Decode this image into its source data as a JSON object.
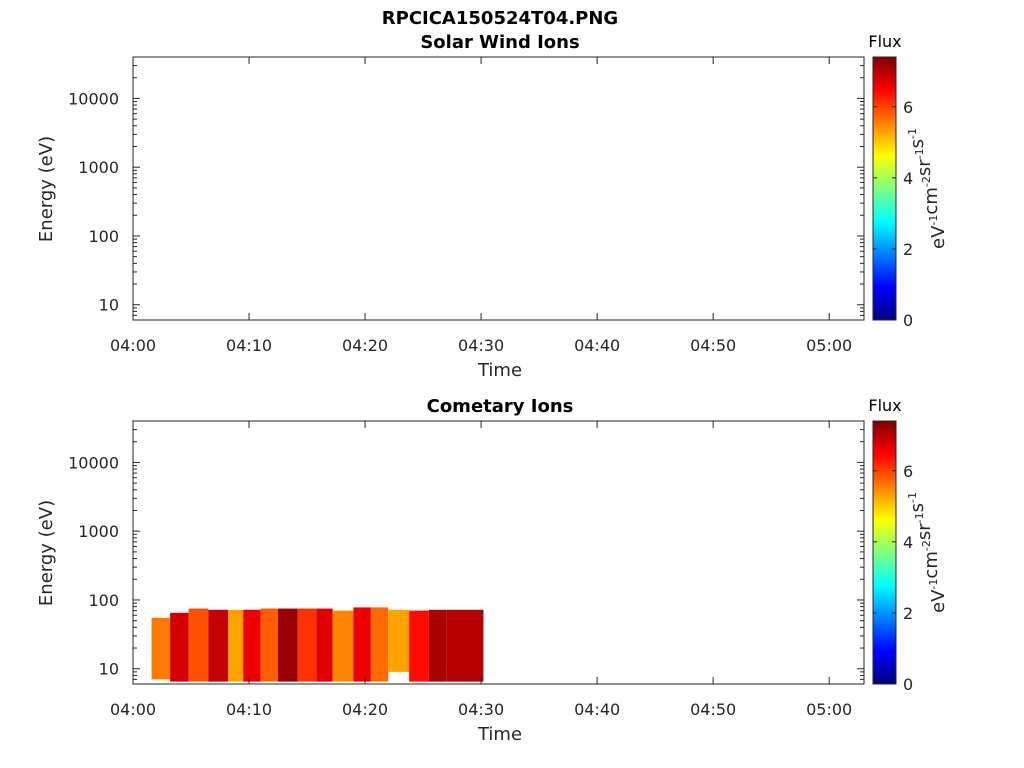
{
  "page_title": "RPCICA150524T04.PNG",
  "colormap": [
    "#00007f",
    "#0000ff",
    "#007fff",
    "#00ffff",
    "#7fff7f",
    "#ffff00",
    "#ff7f00",
    "#ff0000",
    "#7f0000"
  ],
  "chart_data": [
    {
      "type": "heatmap",
      "title": "Solar Wind Ions",
      "xlabel": "Time",
      "ylabel": "Energy (eV)",
      "x_ticks": [
        "04:00",
        "04:10",
        "04:20",
        "04:30",
        "04:40",
        "04:50",
        "05:00"
      ],
      "x_tick_minutes": [
        0,
        10,
        20,
        30,
        40,
        50,
        60
      ],
      "xlim_minutes": [
        0,
        63
      ],
      "y_scale": "log",
      "ylim": [
        6,
        40000
      ],
      "y_ticks": [
        "10",
        "100",
        "1000",
        "10000"
      ],
      "y_tick_values": [
        10,
        100,
        1000,
        10000
      ],
      "colorbar": {
        "title": "Flux",
        "label": "eV-1cm-2sr-1s-1",
        "range": [
          0,
          7.4
        ],
        "ticks": [
          "0",
          "2",
          "4",
          "6"
        ],
        "tick_values": [
          0,
          2,
          4,
          6
        ]
      },
      "cells": []
    },
    {
      "type": "heatmap",
      "title": "Cometary Ions",
      "xlabel": "Time",
      "ylabel": "Energy (eV)",
      "x_ticks": [
        "04:00",
        "04:10",
        "04:20",
        "04:30",
        "04:40",
        "04:50",
        "05:00"
      ],
      "x_tick_minutes": [
        0,
        10,
        20,
        30,
        40,
        50,
        60
      ],
      "xlim_minutes": [
        0,
        63
      ],
      "y_scale": "log",
      "ylim": [
        6,
        40000
      ],
      "y_ticks": [
        "10",
        "100",
        "1000",
        "10000"
      ],
      "y_tick_values": [
        10,
        100,
        1000,
        10000
      ],
      "colorbar": {
        "title": "Flux",
        "label": "eV-1cm-2sr-1s-1",
        "range": [
          0,
          7.4
        ],
        "ticks": [
          "0",
          "2",
          "4",
          "6"
        ],
        "tick_values": [
          0,
          2,
          4,
          6
        ]
      },
      "cells": [
        {
          "t0": 1.6,
          "t1": 3.2,
          "e0": 7.0,
          "e1": 55,
          "v": 5.6
        },
        {
          "t0": 3.2,
          "t1": 4.8,
          "e0": 6.5,
          "e1": 65,
          "v": 6.8
        },
        {
          "t0": 4.8,
          "t1": 6.5,
          "e0": 6.5,
          "e1": 75,
          "v": 5.9
        },
        {
          "t0": 6.5,
          "t1": 8.2,
          "e0": 6.5,
          "e1": 72,
          "v": 6.9
        },
        {
          "t0": 8.2,
          "t1": 9.5,
          "e0": 6.5,
          "e1": 72,
          "v": 5.3
        },
        {
          "t0": 9.5,
          "t1": 11.0,
          "e0": 6.5,
          "e1": 72,
          "v": 6.6
        },
        {
          "t0": 11.0,
          "t1": 12.5,
          "e0": 6.5,
          "e1": 75,
          "v": 5.8
        },
        {
          "t0": 12.5,
          "t1": 14.2,
          "e0": 6.5,
          "e1": 75,
          "v": 7.2
        },
        {
          "t0": 14.2,
          "t1": 15.8,
          "e0": 6.5,
          "e1": 75,
          "v": 6.1
        },
        {
          "t0": 15.8,
          "t1": 17.2,
          "e0": 6.5,
          "e1": 75,
          "v": 6.7
        },
        {
          "t0": 17.2,
          "t1": 19.0,
          "e0": 6.5,
          "e1": 70,
          "v": 5.5
        },
        {
          "t0": 19.0,
          "t1": 20.5,
          "e0": 6.5,
          "e1": 78,
          "v": 6.6
        },
        {
          "t0": 20.5,
          "t1": 22.0,
          "e0": 6.5,
          "e1": 78,
          "v": 5.7
        },
        {
          "t0": 22.0,
          "t1": 23.8,
          "e0": 9.0,
          "e1": 72,
          "v": 5.3
        },
        {
          "t0": 23.8,
          "t1": 25.5,
          "e0": 6.5,
          "e1": 70,
          "v": 6.4
        },
        {
          "t0": 25.5,
          "t1": 27.0,
          "e0": 6.5,
          "e1": 72,
          "v": 7.1
        },
        {
          "t0": 27.0,
          "t1": 30.2,
          "e0": 6.5,
          "e1": 72,
          "v": 7.0
        }
      ]
    }
  ]
}
